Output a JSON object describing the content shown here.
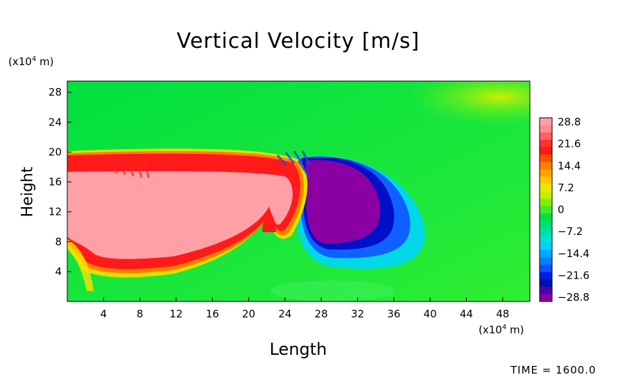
{
  "chart_data": {
    "type": "heatmap",
    "title": "Vertical Velocity [m/s]",
    "xlabel": "Length",
    "ylabel": "Height",
    "x_unit": "(x10⁴ m)",
    "y_unit": "(x10⁴ m)",
    "xlim": [
      0,
      51
    ],
    "ylim": [
      0,
      29.5
    ],
    "xticks": [
      4,
      8,
      12,
      16,
      20,
      24,
      28,
      32,
      36,
      40,
      44,
      48
    ],
    "yticks": [
      4,
      8,
      12,
      16,
      20,
      24,
      28
    ],
    "colorbar": {
      "ticks": [
        "28.8",
        "21.6",
        "14.4",
        "7.2",
        "0",
        "−7.2",
        "−14.4",
        "−21.6",
        "−28.8"
      ],
      "range": [
        -28.8,
        28.8
      ]
    },
    "regions": [
      {
        "name": "updraft",
        "value_range": [
          21.6,
          28.8
        ],
        "x_range": [
          0,
          25.5
        ],
        "y_range": [
          4.5,
          19.5
        ]
      },
      {
        "name": "downdraft",
        "value_range": [
          -28.8,
          -21.6
        ],
        "x_range": [
          25.5,
          37
        ],
        "y_range": [
          6,
          19
        ]
      }
    ],
    "time_label": "TIME = 1600.0"
  },
  "colors": {
    "background": "#00e63c",
    "pink": "#ff9fa6",
    "red": "#ff1a1a",
    "purple": "#8a00a3"
  }
}
